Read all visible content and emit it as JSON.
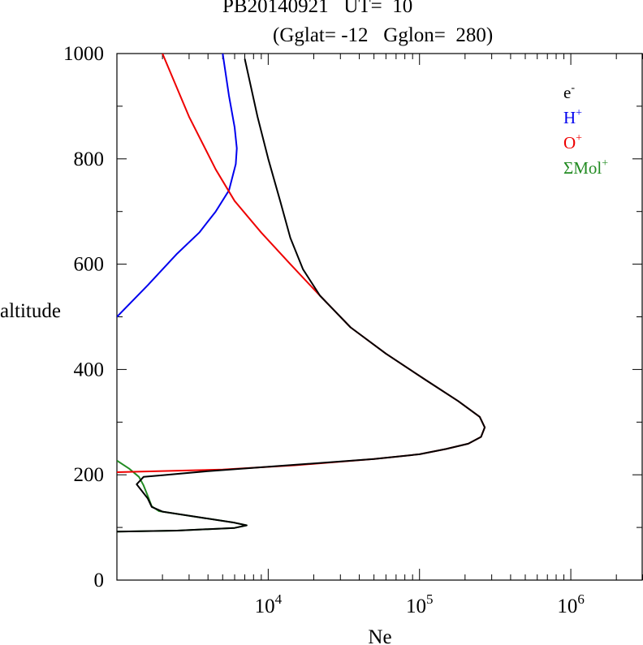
{
  "chart_data": {
    "type": "line",
    "title_line1": "PB20140921   UT=  10",
    "title_line2": "(Gglat= -12   Gglon=  280)",
    "xlabel": "Ne",
    "ylabel": "altitude",
    "x_scale": "log",
    "xlim": [
      1000,
      3000000
    ],
    "ylim": [
      0,
      1000
    ],
    "x_ticks": [
      {
        "base": "10",
        "exp": "4",
        "value": 10000
      },
      {
        "base": "10",
        "exp": "5",
        "value": 100000
      },
      {
        "base": "10",
        "exp": "6",
        "value": 1000000
      }
    ],
    "y_ticks": [
      "0",
      "200",
      "400",
      "600",
      "800",
      "1000"
    ],
    "legend_position": "top-right",
    "series": [
      {
        "name": "e",
        "name_sup": "-",
        "color": "#000000",
        "points": [
          [
            1000,
            92
          ],
          [
            2500,
            94
          ],
          [
            6000,
            99
          ],
          [
            7200,
            104
          ],
          [
            6000,
            109
          ],
          [
            2000,
            130
          ],
          [
            1700,
            139
          ],
          [
            1600,
            155
          ],
          [
            1350,
            182
          ],
          [
            1500,
            196
          ],
          [
            2000,
            199
          ],
          [
            4000,
            207
          ],
          [
            15000,
            219
          ],
          [
            50000,
            230
          ],
          [
            100000,
            239
          ],
          [
            150000,
            249
          ],
          [
            210000,
            259
          ],
          [
            255000,
            272
          ],
          [
            270000,
            290
          ],
          [
            250000,
            310
          ],
          [
            180000,
            340
          ],
          [
            110000,
            380
          ],
          [
            60000,
            430
          ],
          [
            35000,
            480
          ],
          [
            22000,
            540
          ],
          [
            17000,
            590
          ],
          [
            14000,
            650
          ],
          [
            12000,
            720
          ],
          [
            10000,
            800
          ],
          [
            8500,
            880
          ],
          [
            7000,
            990
          ]
        ]
      },
      {
        "name": "H",
        "name_sup": "+",
        "color": "#0000ee",
        "points": [
          [
            1000,
            500
          ],
          [
            1600,
            560
          ],
          [
            2500,
            620
          ],
          [
            3500,
            660
          ],
          [
            4500,
            700
          ],
          [
            5500,
            740
          ],
          [
            6100,
            790
          ],
          [
            6200,
            820
          ],
          [
            6000,
            860
          ],
          [
            5500,
            920
          ],
          [
            5000,
            1000
          ]
        ]
      },
      {
        "name": "O",
        "name_sup": "+",
        "color": "#ee0000",
        "points": [
          [
            1000,
            205
          ],
          [
            5000,
            210
          ],
          [
            15000,
            218
          ],
          [
            50000,
            230
          ],
          [
            100000,
            239
          ],
          [
            150000,
            249
          ],
          [
            210000,
            259
          ],
          [
            255000,
            272
          ],
          [
            270000,
            290
          ],
          [
            250000,
            310
          ],
          [
            180000,
            340
          ],
          [
            110000,
            380
          ],
          [
            60000,
            430
          ],
          [
            35000,
            480
          ],
          [
            22000,
            540
          ],
          [
            14000,
            600
          ],
          [
            9000,
            660
          ],
          [
            6000,
            720
          ],
          [
            4500,
            780
          ],
          [
            3000,
            880
          ],
          [
            2000,
            1000
          ]
        ]
      },
      {
        "name": "ΣMol",
        "name_sup": "+",
        "color": "#228b22",
        "points": [
          [
            1000,
            227
          ],
          [
            1200,
            212
          ],
          [
            1400,
            196
          ],
          [
            1500,
            180
          ],
          [
            1600,
            160
          ],
          [
            1700,
            140
          ],
          [
            1900,
            131
          ],
          [
            6000,
            109
          ],
          [
            7200,
            104
          ],
          [
            6000,
            99
          ],
          [
            2500,
            94
          ],
          [
            1000,
            92
          ]
        ]
      }
    ]
  }
}
